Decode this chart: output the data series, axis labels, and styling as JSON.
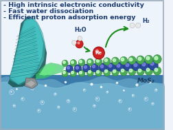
{
  "title_lines": [
    "- High intrinsic electronic conductivity",
    "- Fast water dissociation",
    "- Efficient proton adsorption energy"
  ],
  "title_color": "#1a3a6e",
  "title_fontsize": 6.8,
  "bg_color": "#f0f4fa",
  "water_color_deep": "#3a7aaa",
  "water_color_mid": "#5a9abf",
  "water_color_light": "#7abcd8",
  "mos2_label": "MoS₂",
  "mos2_label_color": "#1a3a5a",
  "h2o_label": "H₂O",
  "h2_label": "H₂",
  "re_label": "Re",
  "s_atom_color": "#4aaa55",
  "s_atom_edge": "#2a7a30",
  "mo_atom_color": "#2a4a9a",
  "mo_atom_edge": "#0a1a6a",
  "re_atom_color": "#cc2222",
  "re_atom_edge": "#880000",
  "water_o_color": "#cc2222",
  "water_h_color": "#e8e8e8",
  "arrow_color": "#1a8a1a",
  "border_color": "#9aaabb",
  "teal_hi": "#50d0d0",
  "teal_mid": "#30aaaa",
  "teal_dark": "#0a7070",
  "teal_black": "#053535",
  "glow_color": "#50cc70",
  "stone_color": "#909090"
}
